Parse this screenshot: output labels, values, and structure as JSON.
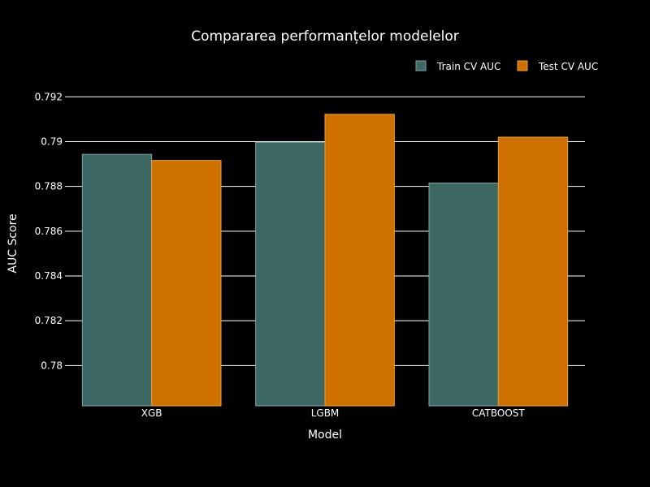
{
  "chart_data": {
    "type": "bar",
    "title": "Compararea performanțelor modelelor",
    "xlabel": "Model",
    "ylabel": "AUC Score",
    "categories": [
      "XGB",
      "LGBM",
      "CATBOOST"
    ],
    "series": [
      {
        "name": "Train CV AUC",
        "values": [
          0.78943,
          0.78997,
          0.78815
        ]
      },
      {
        "name": "Test CV AUC",
        "values": [
          0.78916,
          0.79122,
          0.7902
        ]
      }
    ],
    "ylim": [
      0.7782,
      0.7927
    ],
    "yticks": [
      0.78,
      0.782,
      0.784,
      0.786,
      0.788,
      0.79,
      0.792
    ],
    "ytick_labels": [
      "0.78",
      "0.782",
      "0.784",
      "0.786",
      "0.788",
      "0.79",
      "0.792"
    ],
    "grid": true,
    "legend_position": "top-right",
    "colors": {
      "background": "#000000",
      "text": "#ffffff",
      "grid": "#ffffff",
      "series": [
        "#3d6763",
        "#cd7000"
      ],
      "bar_outline": [
        "#7fa6a2",
        "#e8a040"
      ]
    }
  }
}
